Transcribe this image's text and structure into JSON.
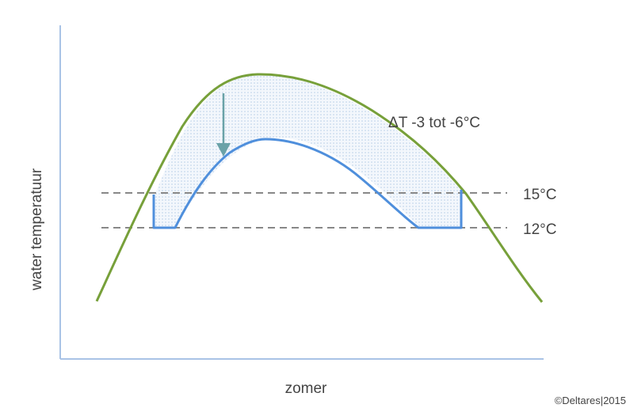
{
  "diagram": {
    "ylabel": "water temperatuur",
    "xlabel": "zomer",
    "delta_label": "ΔT  -3 tot -6°C",
    "ref_lines": [
      {
        "label": "15°C"
      },
      {
        "label": "12°C"
      }
    ],
    "copyright": "©Deltares|2015",
    "colors": {
      "natural_curve": "#77a03a",
      "cooled_curve": "#4f8fdc",
      "reference_lines": "#888888",
      "axes": "#a9c3e6",
      "arrow": "#6aa2a8",
      "hatch": "#b8cfe8"
    }
  }
}
